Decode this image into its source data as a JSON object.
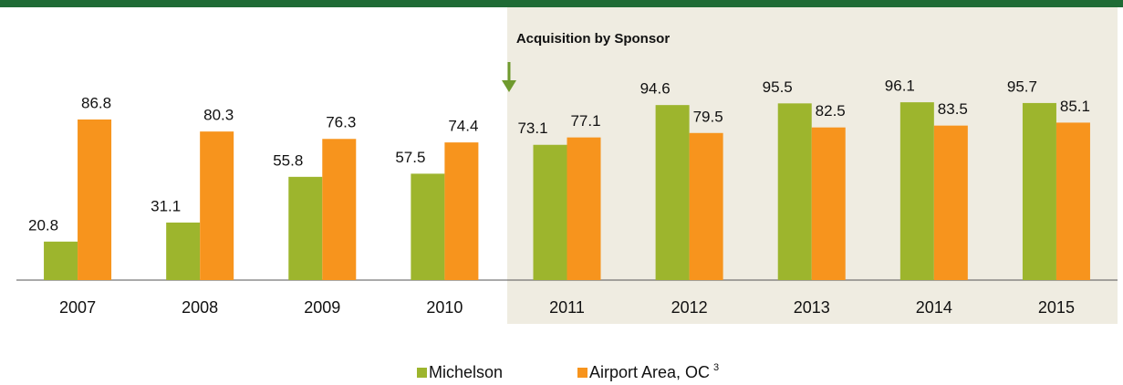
{
  "chart_data": {
    "type": "bar",
    "annotation": "Acquisition by Sponsor",
    "categories": [
      "2007",
      "2008",
      "2009",
      "2010",
      "2011",
      "2012",
      "2013",
      "2014",
      "2015"
    ],
    "series": [
      {
        "name": "Michelson",
        "color": "#9db52d",
        "values": [
          20.8,
          31.1,
          55.8,
          57.5,
          73.1,
          94.6,
          95.5,
          96.1,
          95.7
        ]
      },
      {
        "name": "Airport Area, OC",
        "footnote": "3",
        "color": "#f7941d",
        "values": [
          86.8,
          80.3,
          76.3,
          74.4,
          77.1,
          79.5,
          82.5,
          83.5,
          85.1
        ]
      }
    ],
    "ylim": [
      0,
      100
    ]
  }
}
